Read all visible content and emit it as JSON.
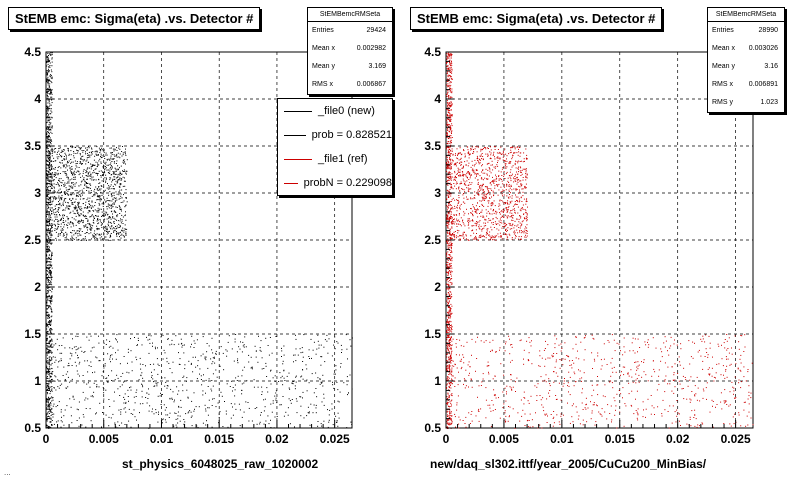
{
  "chart_data": [
    {
      "type": "scatter",
      "title": "StEMB emc: Sigma(eta) .vs. Detector #",
      "xlabel": "st_physics_6048025_raw_1020002",
      "ylabel": "",
      "xlim": [
        0,
        0.0265
      ],
      "ylim": [
        0.5,
        4.5
      ],
      "xticks": [
        "0",
        "0.005",
        "0.01",
        "0.015",
        "0.02",
        "0.025"
      ],
      "xtick_values": [
        0,
        0.005,
        0.01,
        0.015,
        0.02,
        0.025
      ],
      "yticks": [
        "0.5",
        "1",
        "1.5",
        "2",
        "2.5",
        "3",
        "3.5",
        "4",
        "4.5"
      ],
      "ytick_values": [
        0.5,
        1,
        1.5,
        2,
        2.5,
        3,
        3.5,
        4,
        4.5
      ],
      "grid": true,
      "color": "#000000",
      "stats": {
        "title": "StEMBemcRMSeta",
        "rows": [
          {
            "label": "Entries",
            "value": "29424"
          },
          {
            "label": "Mean x",
            "value": "0.002982"
          },
          {
            "label": "Mean y",
            "value": "3.169"
          },
          {
            "label": "RMS x",
            "value": "0.006867"
          }
        ]
      },
      "legend": {
        "placement": "top-right",
        "entries": [
          {
            "label": "_file0 (new)",
            "color": "#000000"
          },
          {
            "label": "prob = 0.828521",
            "color": "#000000"
          },
          {
            "label": "_file1 (ref)",
            "color": "#cc0000"
          },
          {
            "label": "probN = 0.229098",
            "color": "#cc0000"
          }
        ]
      },
      "clusters": [
        {
          "x": [
            0.0,
            0.0005
          ],
          "y": [
            0.5,
            4.5
          ],
          "count": 900
        },
        {
          "x": [
            0.0,
            0.007
          ],
          "y": [
            2.5,
            3.5
          ],
          "count": 1400
        },
        {
          "x": [
            0.0,
            0.0265
          ],
          "y": [
            0.5,
            1.5
          ],
          "count": 900
        }
      ]
    },
    {
      "type": "scatter",
      "title": "StEMB emc: Sigma(eta) .vs. Detector #",
      "xlabel": "new/daq_sl302.ittf/year_2005/CuCu200_MinBias/",
      "ylabel": "",
      "xlim": [
        0,
        0.0265
      ],
      "ylim": [
        0.5,
        4.5
      ],
      "xticks": [
        "0",
        "0.005",
        "0.01",
        "0.015",
        "0.02",
        "0.025"
      ],
      "xtick_values": [
        0,
        0.005,
        0.01,
        0.015,
        0.02,
        0.025
      ],
      "yticks": [
        "0.5",
        "1",
        "1.5",
        "2",
        "2.5",
        "3",
        "3.5",
        "4",
        "4.5"
      ],
      "ytick_values": [
        0.5,
        1,
        1.5,
        2,
        2.5,
        3,
        3.5,
        4,
        4.5
      ],
      "grid": true,
      "color": "#cc0000",
      "stats": {
        "title": "StEMBemcRMSeta",
        "rows": [
          {
            "label": "Entries",
            "value": "28990"
          },
          {
            "label": "Mean x",
            "value": "0.003026"
          },
          {
            "label": "Mean y",
            "value": "3.16"
          },
          {
            "label": "RMS x",
            "value": "0.006891"
          },
          {
            "label": "RMS y",
            "value": "1.023"
          }
        ]
      },
      "clusters": [
        {
          "x": [
            0.0,
            0.0005
          ],
          "y": [
            0.5,
            4.5
          ],
          "count": 900
        },
        {
          "x": [
            0.0,
            0.007
          ],
          "y": [
            2.5,
            3.5
          ],
          "count": 1200
        },
        {
          "x": [
            0.0,
            0.0265
          ],
          "y": [
            0.5,
            1.5
          ],
          "count": 800
        }
      ]
    }
  ],
  "footer_note": "..."
}
